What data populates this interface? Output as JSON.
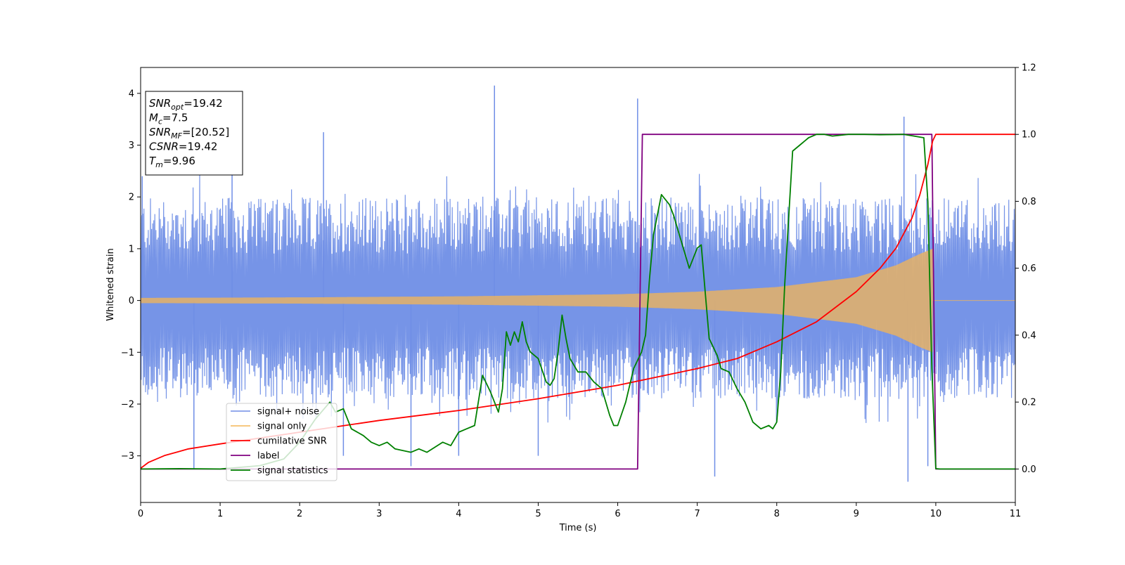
{
  "chart_data": {
    "type": "line",
    "title": "",
    "xlabel": "Time (s)",
    "ylabel": "Whitened strain",
    "xlim": [
      0,
      11
    ],
    "ylim": [
      -3.9,
      4.5
    ],
    "y2lim": [
      -0.1,
      1.2
    ],
    "x_ticks": [
      0,
      1,
      2,
      3,
      4,
      5,
      6,
      7,
      8,
      9,
      10,
      11
    ],
    "y_ticks": [
      -3,
      -2,
      -1,
      0,
      1,
      2,
      3,
      4
    ],
    "y2_ticks": [
      "0.0",
      "0.2",
      "0.4",
      "0.6",
      "0.8",
      "1.0",
      "1.2"
    ],
    "grid": false,
    "legend_position": "lower-left",
    "colors": {
      "signal_noise": "#6f8ee6",
      "signal_only": "#f5b654",
      "cumulative_snr": "#ff0000",
      "label": "#800080",
      "signal_statistics": "#008000"
    },
    "annotation": {
      "lines": [
        {
          "base": "SNR",
          "sub": "opt",
          "rest": "=19.42"
        },
        {
          "base": "M",
          "sub": "c",
          "rest": "=7.5"
        },
        {
          "base": "SNR",
          "sub": "MF",
          "rest": "=[20.52]"
        },
        {
          "base": "CSNR",
          "sub": "",
          "rest": "=19.42"
        },
        {
          "base": "T",
          "sub": "m",
          "rest": "=9.96"
        }
      ]
    },
    "series": [
      {
        "name": "signal+ noise",
        "axis": "left",
        "style": "noise",
        "x_start": 0,
        "x_end": 11,
        "band_low": -1.9,
        "band_high": 2.0,
        "spikes": [
          [
            0.02,
            2.4
          ],
          [
            0.67,
            -3.25
          ],
          [
            1.15,
            2.75
          ],
          [
            2.3,
            3.25
          ],
          [
            2.55,
            -3.0
          ],
          [
            3.4,
            -3.2
          ],
          [
            4.0,
            -3.0
          ],
          [
            4.45,
            4.15
          ],
          [
            5.0,
            -3.0
          ],
          [
            6.25,
            3.9
          ],
          [
            7.22,
            -3.4
          ],
          [
            9.6,
            3.55
          ],
          [
            9.65,
            -3.5
          ],
          [
            9.9,
            -3.2
          ]
        ]
      },
      {
        "name": "signal only",
        "axis": "left",
        "style": "chirp",
        "x_start": 0,
        "x_end": 9.96,
        "amplitude_pairs": [
          [
            0,
            0.05
          ],
          [
            2,
            0.06
          ],
          [
            4,
            0.08
          ],
          [
            6,
            0.12
          ],
          [
            7,
            0.17
          ],
          [
            8,
            0.26
          ],
          [
            9,
            0.45
          ],
          [
            9.5,
            0.68
          ],
          [
            9.8,
            0.9
          ],
          [
            9.96,
            1.0
          ]
        ]
      },
      {
        "name": "cumilative SNR",
        "axis": "right",
        "x": [
          0,
          0.1,
          0.3,
          0.6,
          1,
          2,
          3,
          4,
          5,
          6,
          7,
          7.5,
          8,
          8.5,
          9,
          9.3,
          9.5,
          9.7,
          9.8,
          9.9,
          9.96,
          10,
          11
        ],
        "y": [
          0.002,
          0.02,
          0.04,
          0.06,
          0.075,
          0.11,
          0.145,
          0.175,
          0.21,
          0.25,
          0.3,
          0.33,
          0.38,
          0.44,
          0.53,
          0.6,
          0.66,
          0.75,
          0.82,
          0.91,
          0.98,
          1.0,
          1.0
        ]
      },
      {
        "name": "label",
        "axis": "right",
        "x": [
          0,
          6.25,
          6.31,
          9.95,
          10.0,
          11
        ],
        "y": [
          0,
          0,
          1,
          1,
          0,
          0
        ]
      },
      {
        "name": "signal statistics",
        "axis": "right",
        "x": [
          0,
          0.5,
          1.0,
          1.5,
          1.8,
          2.0,
          2.2,
          2.38,
          2.45,
          2.55,
          2.65,
          2.8,
          2.9,
          3.0,
          3.1,
          3.2,
          3.4,
          3.5,
          3.6,
          3.8,
          3.9,
          4.0,
          4.1,
          4.2,
          4.3,
          4.4,
          4.5,
          4.55,
          4.6,
          4.65,
          4.7,
          4.75,
          4.8,
          4.85,
          4.9,
          5.0,
          5.1,
          5.15,
          5.2,
          5.25,
          5.3,
          5.35,
          5.4,
          5.5,
          5.6,
          5.7,
          5.8,
          5.9,
          5.95,
          6.0,
          6.1,
          6.2,
          6.3,
          6.35,
          6.4,
          6.45,
          6.55,
          6.65,
          6.7,
          6.8,
          6.9,
          7.0,
          7.05,
          7.1,
          7.15,
          7.25,
          7.3,
          7.4,
          7.5,
          7.6,
          7.7,
          7.8,
          7.9,
          7.95,
          8.0,
          8.05,
          8.1,
          8.2,
          8.3,
          8.4,
          8.5,
          8.6,
          8.7,
          8.9,
          9.1,
          9.3,
          9.6,
          9.85,
          9.9,
          9.95,
          10.0,
          10.05,
          10.5,
          11
        ],
        "y": [
          0,
          0.001,
          0.0,
          0.01,
          0.03,
          0.08,
          0.15,
          0.2,
          0.17,
          0.18,
          0.12,
          0.1,
          0.08,
          0.07,
          0.08,
          0.06,
          0.05,
          0.06,
          0.05,
          0.08,
          0.07,
          0.11,
          0.12,
          0.13,
          0.28,
          0.23,
          0.17,
          0.24,
          0.41,
          0.37,
          0.41,
          0.38,
          0.44,
          0.38,
          0.35,
          0.33,
          0.26,
          0.25,
          0.27,
          0.35,
          0.46,
          0.39,
          0.33,
          0.29,
          0.29,
          0.26,
          0.24,
          0.16,
          0.13,
          0.13,
          0.2,
          0.3,
          0.35,
          0.4,
          0.57,
          0.7,
          0.82,
          0.79,
          0.76,
          0.68,
          0.6,
          0.66,
          0.67,
          0.53,
          0.39,
          0.34,
          0.3,
          0.29,
          0.24,
          0.2,
          0.14,
          0.12,
          0.13,
          0.12,
          0.14,
          0.29,
          0.55,
          0.95,
          0.97,
          0.99,
          1.0,
          1.0,
          0.995,
          1.0,
          1.0,
          0.999,
          1.0,
          0.99,
          0.8,
          0.3,
          0.001,
          0.0,
          0.0,
          0.0
        ]
      }
    ]
  }
}
